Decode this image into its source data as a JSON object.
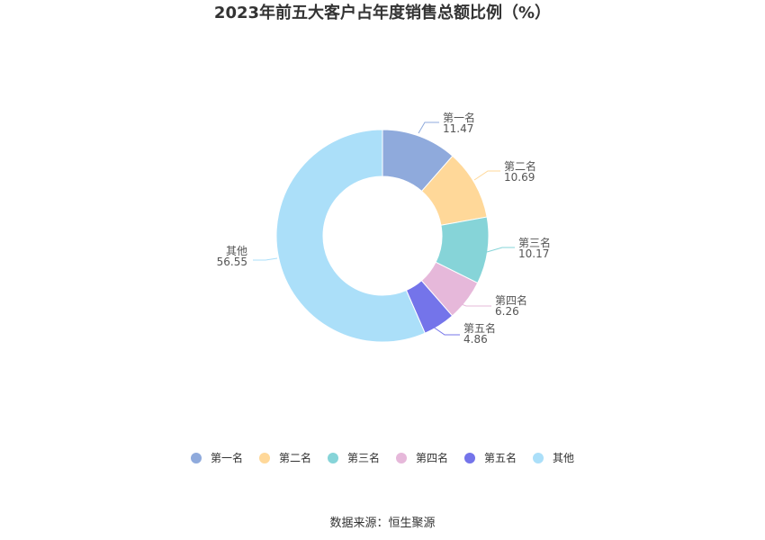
{
  "title": "2023年前五大客户占年度销售总额比例（%）",
  "source": "数据来源：恒生聚源",
  "chart_data": {
    "type": "pie",
    "title": "2023年前五大客户占年度销售总额比例（%）",
    "legend_position": "bottom",
    "series": [
      {
        "name": "第一名",
        "value": 11.47,
        "label": "11.47",
        "color": "#8faadc"
      },
      {
        "name": "第二名",
        "value": 10.69,
        "label": "10.69",
        "color": "#ffd899"
      },
      {
        "name": "第三名",
        "value": 10.17,
        "label": "10.17",
        "color": "#86d4d8"
      },
      {
        "name": "第四名",
        "value": 6.26,
        "label": "6.26",
        "color": "#e6b8da"
      },
      {
        "name": "第五名",
        "value": 4.86,
        "label": "4.86",
        "color": "#7474ea"
      },
      {
        "name": "其他",
        "value": 56.55,
        "label": "56.55",
        "color": "#abdff9"
      }
    ]
  }
}
